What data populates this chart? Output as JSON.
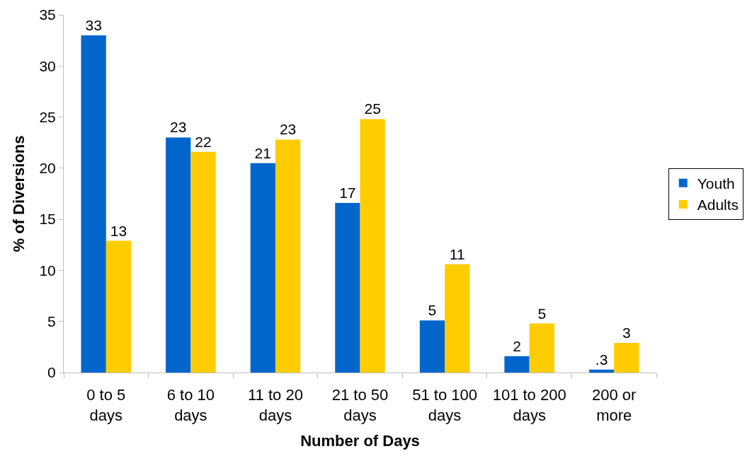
{
  "chart_data": {
    "type": "bar",
    "xlabel": "Number of Days",
    "ylabel": "% of Diversions",
    "categories": [
      "0 to 5 days",
      "6 to 10 days",
      "11 to 20 days",
      "21 to 50 days",
      "51 to 100 days",
      "101 to 200 days",
      "200 or more"
    ],
    "series": [
      {
        "name": "Youth",
        "color": "#0066cc",
        "values": [
          33.0,
          23.0,
          20.5,
          16.6,
          5.1,
          1.6,
          0.3
        ],
        "value_labels": [
          "33",
          "23",
          "21",
          "17",
          "5",
          "2",
          ".3"
        ]
      },
      {
        "name": "Adults",
        "color": "#ffcc00",
        "values": [
          12.9,
          21.6,
          22.8,
          24.8,
          10.6,
          4.8,
          2.9
        ],
        "value_labels": [
          "13",
          "22",
          "23",
          "25",
          "11",
          "5",
          "3"
        ]
      }
    ],
    "ylim": [
      0,
      35
    ],
    "yticks": [
      0,
      5,
      10,
      15,
      20,
      25,
      30,
      35
    ],
    "legend": "right"
  }
}
